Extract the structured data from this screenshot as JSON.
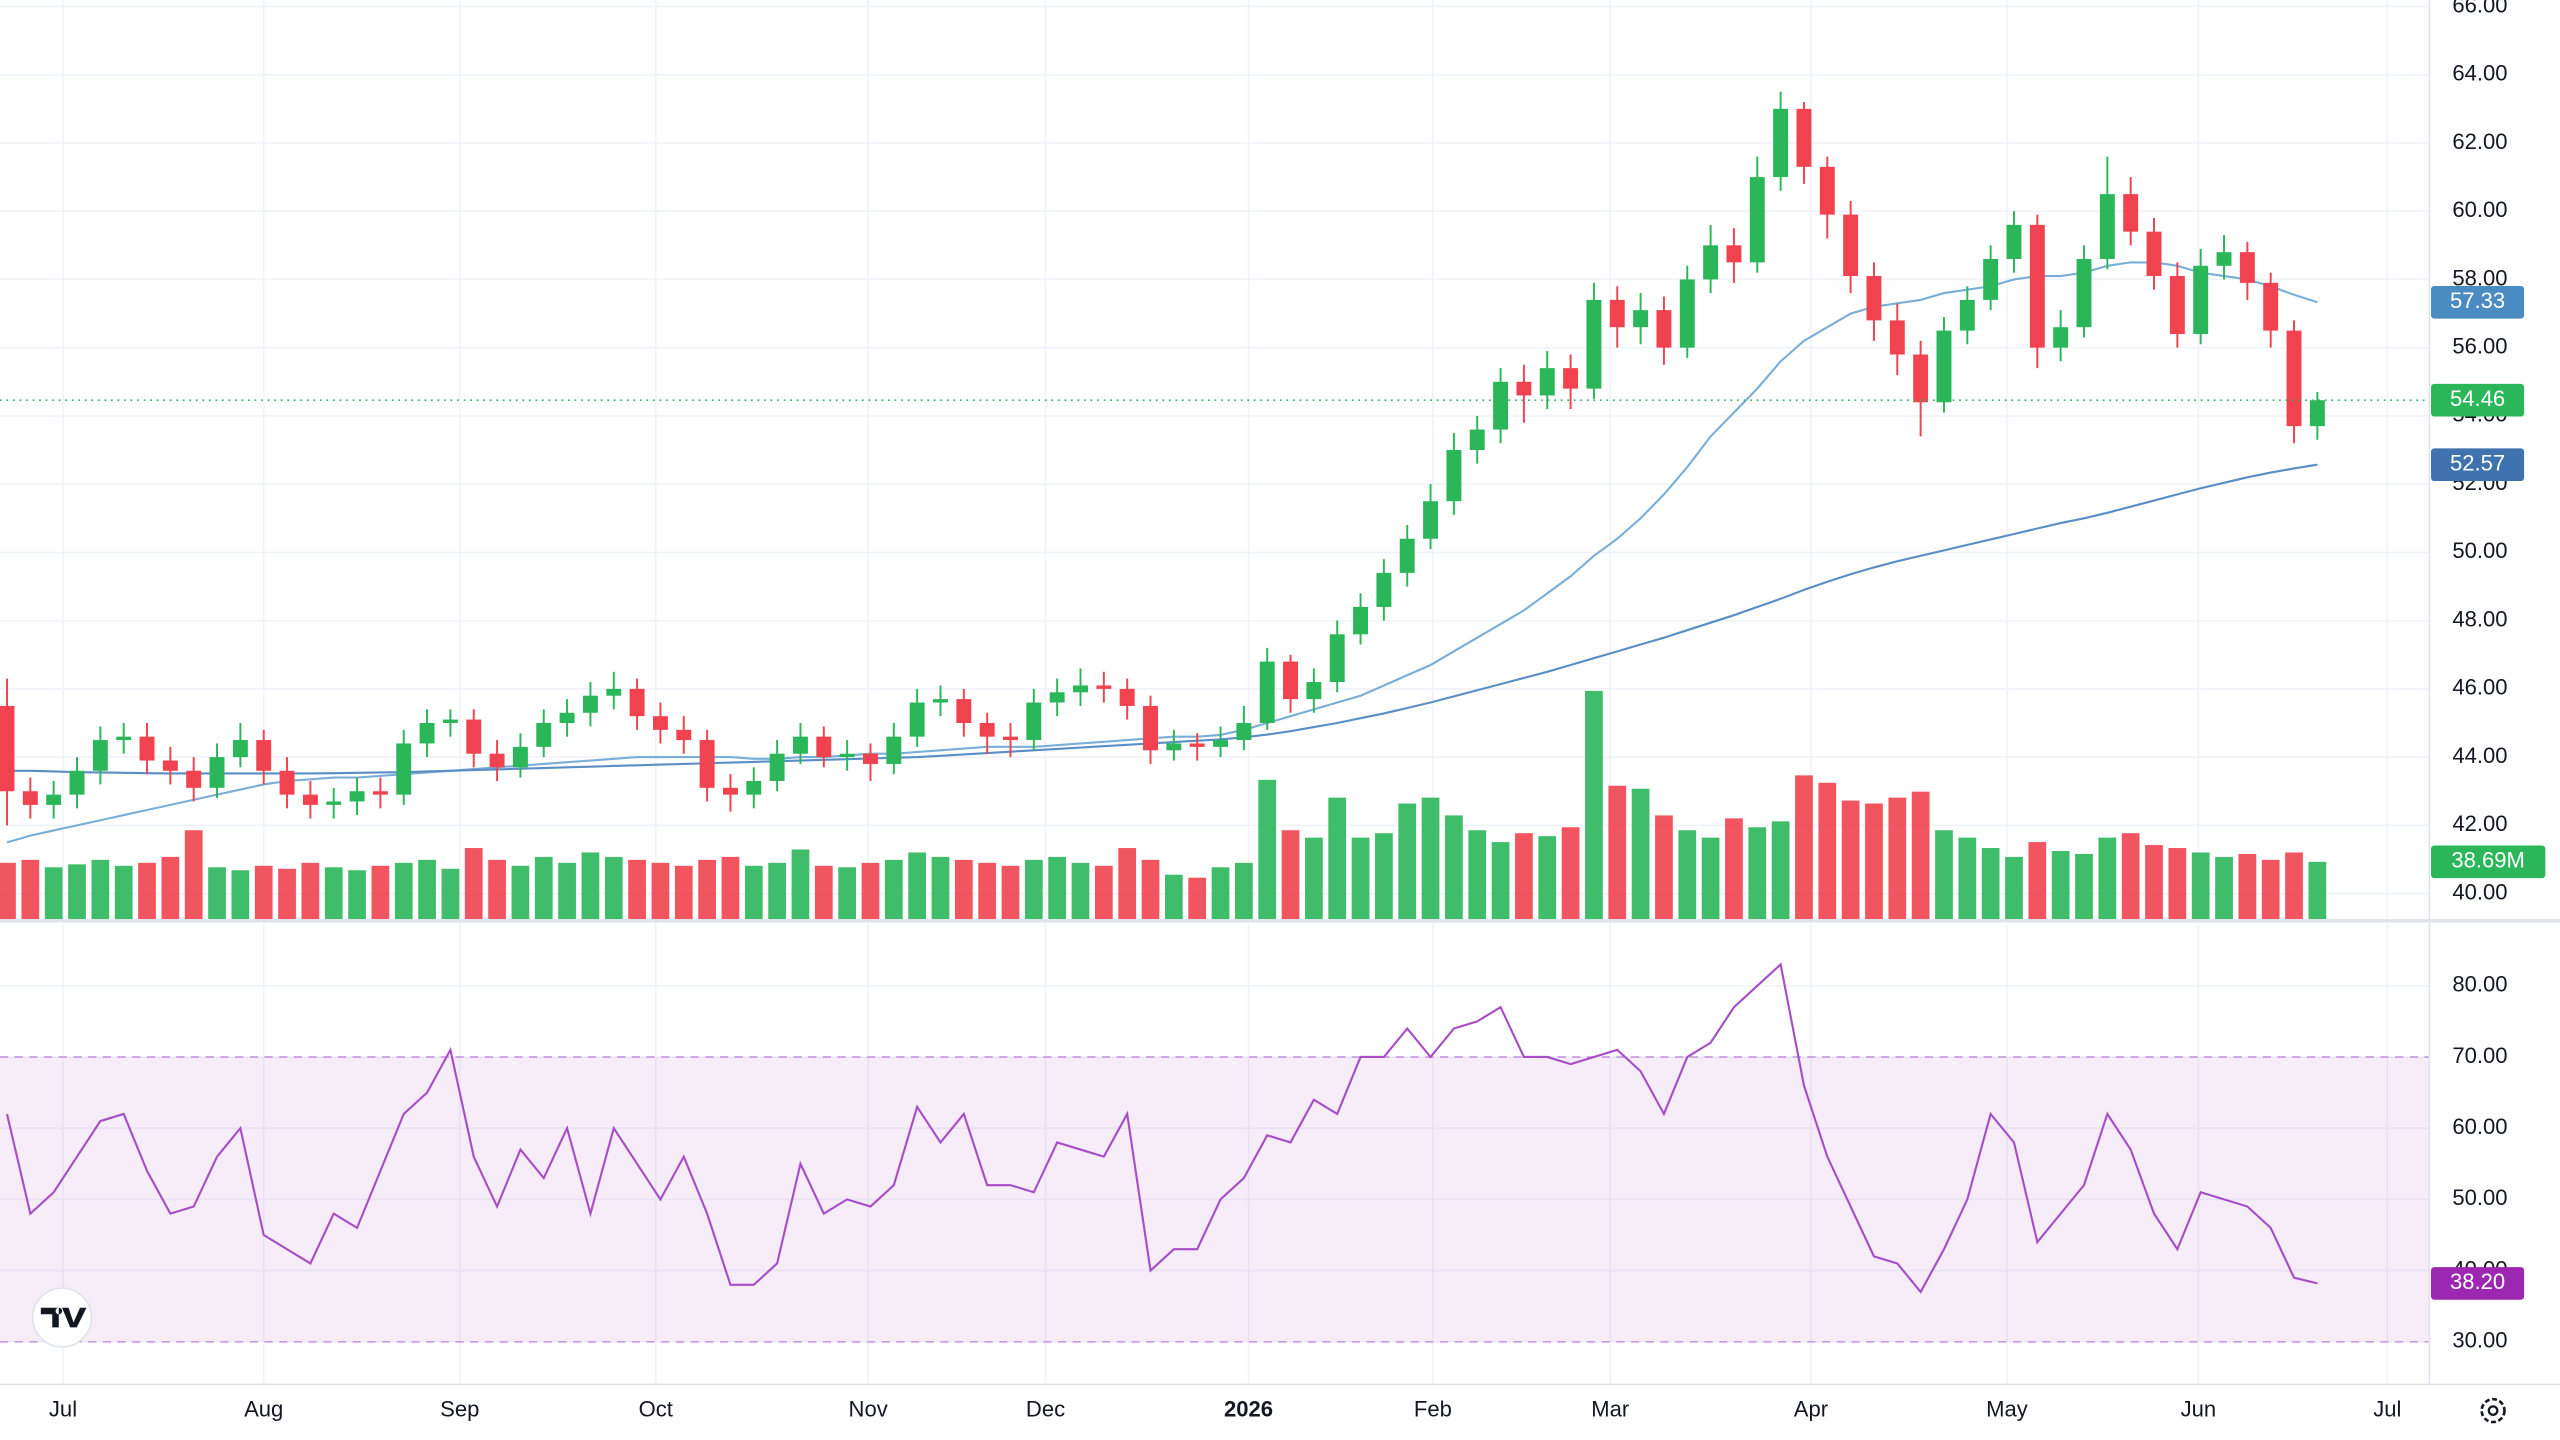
{
  "chart_data": {
    "type": "candlestick",
    "xlim": [
      -0.3,
      103.8
    ],
    "xticks": [
      {
        "value": 2.4,
        "label": "Jul"
      },
      {
        "value": 11.0,
        "label": "Aug"
      },
      {
        "value": 19.4,
        "label": "Sep"
      },
      {
        "value": 27.8,
        "label": "Oct"
      },
      {
        "value": 36.9,
        "label": "Nov"
      },
      {
        "value": 44.5,
        "label": "Dec"
      },
      {
        "value": 53.2,
        "label": "2026"
      },
      {
        "value": 61.1,
        "label": "Feb"
      },
      {
        "value": 68.7,
        "label": "Mar"
      },
      {
        "value": 77.3,
        "label": "Apr"
      },
      {
        "value": 85.7,
        "label": "May"
      },
      {
        "value": 93.9,
        "label": "Jun"
      },
      {
        "value": 102.0,
        "label": "Jul"
      }
    ],
    "ylim": [
      39.25,
      66.19
    ],
    "yticks": [
      {
        "value": 40,
        "label": "40.00"
      },
      {
        "value": 42,
        "label": "42.00"
      },
      {
        "value": 44,
        "label": "44.00"
      },
      {
        "value": 46,
        "label": "46.00"
      },
      {
        "value": 48,
        "label": "48.00"
      },
      {
        "value": 50,
        "label": "50.00"
      },
      {
        "value": 52,
        "label": "52.00"
      },
      {
        "value": 54,
        "label": "54.00"
      },
      {
        "value": 56,
        "label": "56.00"
      },
      {
        "value": 58,
        "label": "58.00"
      },
      {
        "value": 60,
        "label": "60.00"
      },
      {
        "value": 62,
        "label": "62.00"
      },
      {
        "value": 64,
        "label": "64.00"
      },
      {
        "value": 66,
        "label": "66.00"
      }
    ],
    "grid": true,
    "up_color": "#2bb65a",
    "down_color": "#f0424f",
    "open": [
      45.5,
      43.0,
      42.6,
      42.9,
      43.6,
      44.5,
      44.6,
      43.9,
      43.6,
      43.1,
      44.0,
      44.5,
      43.6,
      42.9,
      42.6,
      42.7,
      43.0,
      42.9,
      44.4,
      45.0,
      45.1,
      44.1,
      43.7,
      44.3,
      45.0,
      45.3,
      45.8,
      46.0,
      45.2,
      44.8,
      44.5,
      43.1,
      42.9,
      43.3,
      44.1,
      44.6,
      44.0,
      44.1,
      43.8,
      44.6,
      45.6,
      45.7,
      45.0,
      44.6,
      44.5,
      45.6,
      45.9,
      46.1,
      46.0,
      45.5,
      44.2,
      44.4,
      44.3,
      44.5,
      45.0,
      46.8,
      45.7,
      46.2,
      47.6,
      48.4,
      49.4,
      50.4,
      51.5,
      53.0,
      53.6,
      55.0,
      54.6,
      55.4,
      54.8,
      57.4,
      56.6,
      57.1,
      56.0,
      58.0,
      59.0,
      58.5,
      61.0,
      63.0,
      61.3,
      59.9,
      58.1,
      56.8,
      55.8,
      54.4,
      56.5,
      57.4,
      58.6,
      59.6,
      56.0,
      56.6,
      58.6,
      60.5,
      59.4,
      58.1,
      56.4,
      58.4,
      58.8,
      57.9,
      56.5,
      53.7
    ],
    "high": [
      46.3,
      43.4,
      43.3,
      44.0,
      44.9,
      45.0,
      45.0,
      44.3,
      44.0,
      44.4,
      45.0,
      44.8,
      44.0,
      43.3,
      43.1,
      43.4,
      43.4,
      44.8,
      45.4,
      45.4,
      45.4,
      44.5,
      44.7,
      45.4,
      45.7,
      46.2,
      46.5,
      46.3,
      45.6,
      45.2,
      44.8,
      43.5,
      43.7,
      44.5,
      45.0,
      44.9,
      44.5,
      44.4,
      45.0,
      46.0,
      46.1,
      46.0,
      45.3,
      45.0,
      46.0,
      46.3,
      46.6,
      46.5,
      46.3,
      45.8,
      44.8,
      44.7,
      44.9,
      45.5,
      47.2,
      47.0,
      46.6,
      48.0,
      48.8,
      49.8,
      50.8,
      52.0,
      53.5,
      54.0,
      55.4,
      55.5,
      55.9,
      55.8,
      57.9,
      57.8,
      57.6,
      57.5,
      58.4,
      59.6,
      59.5,
      61.6,
      63.5,
      63.2,
      61.6,
      60.3,
      58.5,
      57.3,
      56.2,
      56.9,
      57.8,
      59.0,
      60.0,
      59.9,
      57.1,
      59.0,
      61.6,
      61.0,
      59.8,
      58.5,
      58.9,
      59.3,
      59.1,
      58.2,
      56.8,
      54.7
    ],
    "low": [
      42.0,
      42.2,
      42.2,
      42.5,
      43.2,
      44.1,
      43.5,
      43.2,
      42.7,
      42.8,
      43.7,
      43.2,
      42.5,
      42.2,
      42.2,
      42.3,
      42.5,
      42.6,
      44.0,
      44.6,
      43.7,
      43.3,
      43.4,
      44.0,
      44.6,
      44.9,
      45.4,
      44.8,
      44.4,
      44.1,
      42.7,
      42.4,
      42.5,
      43.0,
      43.8,
      43.7,
      43.6,
      43.3,
      43.5,
      44.3,
      45.2,
      44.6,
      44.1,
      44.0,
      44.2,
      45.2,
      45.5,
      45.6,
      45.1,
      43.8,
      43.9,
      43.9,
      44.0,
      44.2,
      44.8,
      45.3,
      45.3,
      45.9,
      47.3,
      48.0,
      49.0,
      50.1,
      51.1,
      52.6,
      53.2,
      53.8,
      54.2,
      54.2,
      54.5,
      56.0,
      56.1,
      55.5,
      55.7,
      57.6,
      57.9,
      58.2,
      60.6,
      60.8,
      59.2,
      57.6,
      56.2,
      55.2,
      53.4,
      54.1,
      56.1,
      57.1,
      58.2,
      55.4,
      55.6,
      56.3,
      58.3,
      59.0,
      57.7,
      56.0,
      56.1,
      58.0,
      57.4,
      56.0,
      53.2,
      53.3
    ],
    "close": [
      43.0,
      42.6,
      42.9,
      43.6,
      44.5,
      44.6,
      43.9,
      43.6,
      43.1,
      44.0,
      44.5,
      43.6,
      42.9,
      42.6,
      42.7,
      43.0,
      42.9,
      44.4,
      45.0,
      45.1,
      44.1,
      43.7,
      44.3,
      45.0,
      45.3,
      45.8,
      46.0,
      45.2,
      44.8,
      44.5,
      43.1,
      42.9,
      43.3,
      44.1,
      44.6,
      44.0,
      44.1,
      43.8,
      44.6,
      45.6,
      45.7,
      45.0,
      44.6,
      44.5,
      45.6,
      45.9,
      46.1,
      46.0,
      45.5,
      44.2,
      44.4,
      44.3,
      44.5,
      45.0,
      46.8,
      45.7,
      46.2,
      47.6,
      48.4,
      49.4,
      50.4,
      51.5,
      53.0,
      53.6,
      55.0,
      54.6,
      55.4,
      54.8,
      57.4,
      56.6,
      57.1,
      56.0,
      58.0,
      59.0,
      58.5,
      61.0,
      63.0,
      61.3,
      59.9,
      58.1,
      56.8,
      55.8,
      54.4,
      56.5,
      57.4,
      58.6,
      59.6,
      56.0,
      56.6,
      58.6,
      60.5,
      59.4,
      58.1,
      56.4,
      58.4,
      58.8,
      57.9,
      56.5,
      53.7,
      54.46
    ],
    "last_close_label": "54.46",
    "overlays": [
      {
        "color": "#7aaed8",
        "badge_color": "#4a8bc2",
        "value_label": "57.33",
        "values": [
          41.5,
          41.7,
          41.85,
          42.0,
          42.15,
          42.3,
          42.45,
          42.6,
          42.75,
          42.9,
          43.05,
          43.2,
          43.3,
          43.35,
          43.4,
          43.4,
          43.45,
          43.5,
          43.55,
          43.6,
          43.65,
          43.7,
          43.75,
          43.8,
          43.85,
          43.9,
          43.95,
          44.0,
          44.0,
          44.0,
          44.0,
          44.0,
          43.95,
          43.95,
          44.0,
          44.0,
          44.05,
          44.1,
          44.1,
          44.15,
          44.2,
          44.25,
          44.3,
          44.3,
          44.3,
          44.35,
          44.4,
          44.45,
          44.5,
          44.55,
          44.6,
          44.6,
          44.65,
          44.8,
          45.0,
          45.2,
          45.4,
          45.6,
          45.8,
          46.1,
          46.4,
          46.7,
          47.1,
          47.5,
          47.9,
          48.3,
          48.8,
          49.3,
          49.9,
          50.4,
          51.0,
          51.7,
          52.5,
          53.4,
          54.1,
          54.8,
          55.6,
          56.2,
          56.6,
          57.0,
          57.2,
          57.3,
          57.4,
          57.6,
          57.7,
          57.8,
          58.0,
          58.1,
          58.1,
          58.2,
          58.4,
          58.5,
          58.5,
          58.4,
          58.2,
          58.1,
          58.0,
          57.8,
          57.55,
          57.33
        ]
      },
      {
        "color": "#5b8ec4",
        "badge_color": "#3f72ae",
        "value_label": "52.57",
        "values": [
          43.6,
          43.6,
          43.58,
          43.56,
          43.55,
          43.54,
          43.53,
          43.52,
          43.52,
          43.52,
          43.52,
          43.52,
          43.52,
          43.52,
          43.53,
          43.54,
          43.55,
          43.56,
          43.58,
          43.6,
          43.62,
          43.64,
          43.66,
          43.68,
          43.7,
          43.72,
          43.74,
          43.76,
          43.78,
          43.8,
          43.82,
          43.84,
          43.86,
          43.88,
          43.9,
          43.92,
          43.94,
          43.96,
          43.98,
          44.0,
          44.04,
          44.08,
          44.12,
          44.16,
          44.2,
          44.24,
          44.28,
          44.32,
          44.36,
          44.4,
          44.44,
          44.48,
          44.52,
          44.58,
          44.66,
          44.76,
          44.88,
          45.0,
          45.14,
          45.28,
          45.44,
          45.6,
          45.78,
          45.96,
          46.14,
          46.32,
          46.5,
          46.7,
          46.9,
          47.1,
          47.3,
          47.5,
          47.72,
          47.94,
          48.16,
          48.4,
          48.64,
          48.9,
          49.14,
          49.36,
          49.56,
          49.74,
          49.9,
          50.06,
          50.22,
          50.38,
          50.54,
          50.7,
          50.86,
          51.0,
          51.16,
          51.34,
          51.52,
          51.7,
          51.88,
          52.04,
          52.2,
          52.34,
          52.46,
          52.57
        ]
      }
    ],
    "volume": {
      "ylim": [
        0,
        620
      ],
      "value_label": "38.69M",
      "values": [
        38,
        40,
        35,
        37,
        40,
        36,
        38,
        42,
        60,
        35,
        33,
        36,
        34,
        38,
        35,
        33,
        36,
        38,
        40,
        34,
        48,
        40,
        36,
        42,
        38,
        45,
        42,
        40,
        38,
        36,
        40,
        42,
        36,
        38,
        47,
        36,
        35,
        38,
        40,
        45,
        42,
        40,
        38,
        36,
        40,
        42,
        38,
        36,
        48,
        40,
        30,
        28,
        35,
        38,
        94,
        60,
        55,
        82,
        55,
        58,
        78,
        82,
        70,
        60,
        52,
        58,
        56,
        62,
        154,
        90,
        88,
        70,
        60,
        55,
        68,
        62,
        66,
        97,
        92,
        80,
        78,
        82,
        86,
        60,
        55,
        48,
        42,
        52,
        46,
        44,
        55,
        58,
        50,
        48,
        45,
        42,
        44,
        40,
        45,
        38.69
      ]
    },
    "rsi": {
      "ylim": [
        24.0,
        88.9
      ],
      "yticks": [
        {
          "value": 30,
          "label": "30.00"
        },
        {
          "value": 40,
          "label": "40.00"
        },
        {
          "value": 50,
          "label": "50.00"
        },
        {
          "value": 60,
          "label": "60.00"
        },
        {
          "value": 70,
          "label": "70.00"
        },
        {
          "value": 80,
          "label": "80.00"
        }
      ],
      "bands": [
        30,
        70
      ],
      "color": "#a64dc7",
      "badge_color": "#9c27b0",
      "value_label": "38.20",
      "values": [
        62,
        48,
        51,
        56,
        61,
        62,
        54,
        48,
        49,
        56,
        60,
        45,
        43,
        41,
        48,
        46,
        54,
        62,
        65,
        71,
        56,
        49,
        57,
        53,
        60,
        48,
        60,
        55,
        50,
        56,
        48,
        38,
        38,
        41,
        55,
        48,
        50,
        49,
        52,
        63,
        58,
        62,
        52,
        52,
        51,
        58,
        57,
        56,
        62,
        40,
        43,
        43,
        50,
        53,
        59,
        58,
        64,
        62,
        70,
        70,
        74,
        70,
        74,
        75,
        77,
        70,
        70,
        69,
        70,
        71,
        68,
        62,
        70,
        72,
        77,
        80,
        83,
        66,
        56,
        49,
        42,
        41,
        37,
        43,
        50,
        62,
        58,
        44,
        48,
        52,
        62,
        57,
        48,
        43,
        51,
        50,
        49,
        46,
        39,
        38.2
      ]
    }
  }
}
